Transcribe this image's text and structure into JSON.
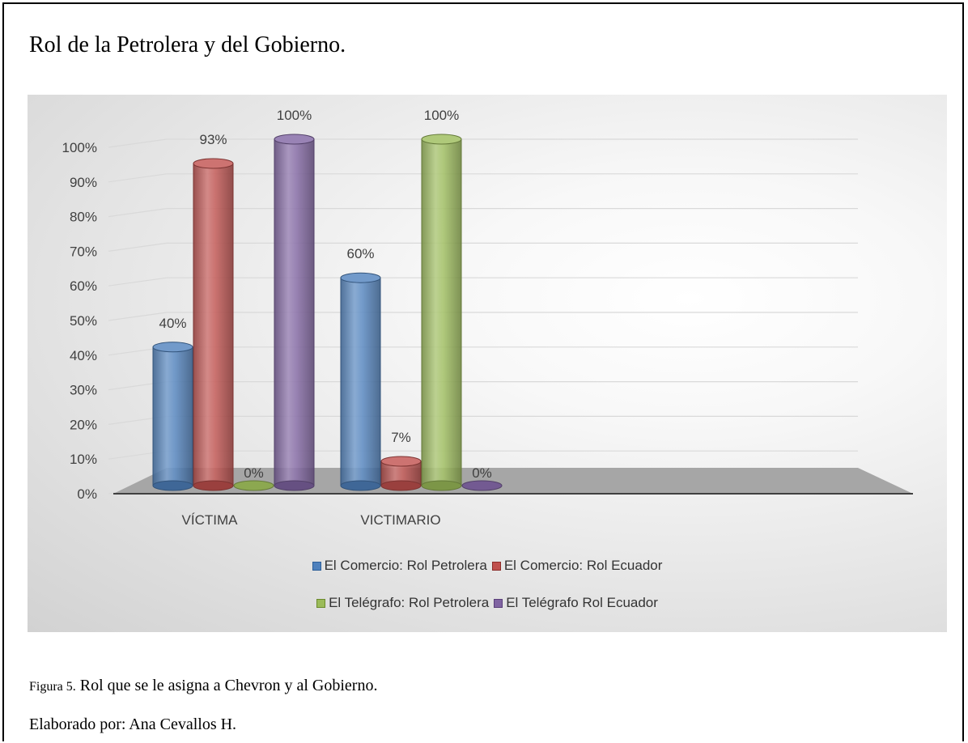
{
  "doc": {
    "title": "Rol de la Petrolera y del Gobierno.",
    "caption_prefix": "Figura 5.",
    "caption_text": " Rol que se le asigna a Chevron y al Gobierno.",
    "credit": "Elaborado por: Ana Cevallos H."
  },
  "chart_data": {
    "type": "bar",
    "categories": [
      "VÍCTIMA",
      "VICTIMARIO"
    ],
    "series": [
      {
        "name": "El Comercio: Rol Petrolera",
        "values": [
          40,
          60
        ],
        "labels": [
          "40%",
          "60%"
        ],
        "color": "#4f81bd"
      },
      {
        "name": "El Comercio: Rol Ecuador",
        "values": [
          93,
          7
        ],
        "labels": [
          "93%",
          "7%"
        ],
        "color": "#c0504d"
      },
      {
        "name": "El Telégrafo: Rol Petrolera",
        "values": [
          0,
          100
        ],
        "labels": [
          "0%",
          "100%"
        ],
        "color": "#9bbb59"
      },
      {
        "name": "El Telégrafo Rol Ecuador",
        "values": [
          100,
          0
        ],
        "labels": [
          "100%",
          "0%"
        ],
        "color": "#8064a2"
      }
    ],
    "yticks": [
      "0%",
      "10%",
      "20%",
      "30%",
      "40%",
      "50%",
      "60%",
      "70%",
      "80%",
      "90%",
      "100%"
    ],
    "ylim": [
      0,
      100
    ],
    "grid": true,
    "legend_position": "bottom",
    "style": "3d-cylinder"
  }
}
